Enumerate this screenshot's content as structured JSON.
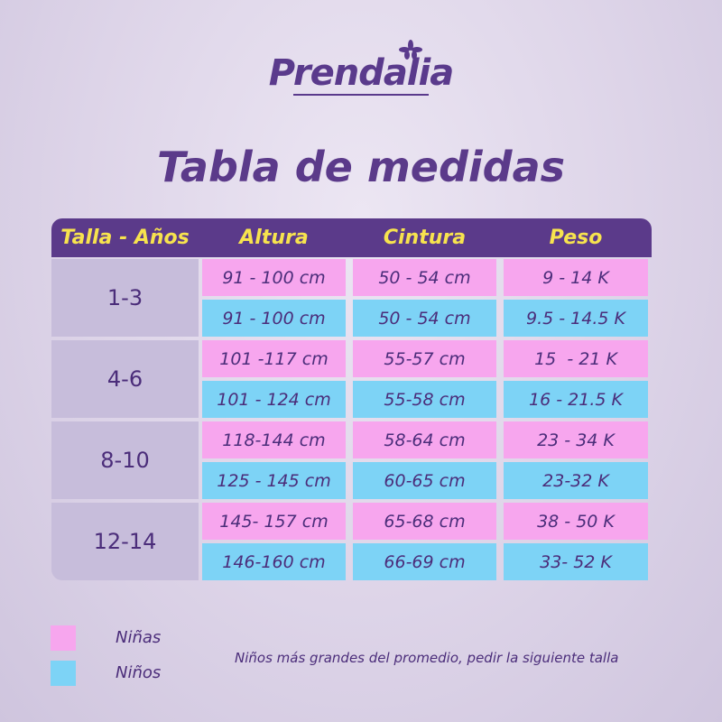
{
  "brand": "Prendalia",
  "title": "Tabla de medidas",
  "table": {
    "header": [
      "Talla - Años",
      "Altura",
      "Cintura",
      "Peso"
    ],
    "groups": [
      {
        "size": "1-3",
        "rows": [
          [
            "91 - 100 cm",
            "50 - 54 cm",
            "9 - 14 K"
          ],
          [
            "91 - 100 cm",
            "50 - 54 cm",
            "9.5 - 14.5 K"
          ]
        ]
      },
      {
        "size": "4-6",
        "rows": [
          [
            "101 -117 cm",
            "55-57 cm",
            "15  - 21 K"
          ],
          [
            "101 - 124 cm",
            "55-58 cm",
            "16 - 21.5 K"
          ]
        ]
      },
      {
        "size": "8-10",
        "rows": [
          [
            "118-144 cm",
            "58-64 cm",
            "23 - 34 K"
          ],
          [
            "125 - 145 cm",
            "60-65 cm",
            "23-32 K"
          ]
        ]
      },
      {
        "size": "12-14",
        "rows": [
          [
            "145- 157 cm",
            "65-68 cm",
            "38 - 50 K"
          ],
          [
            "146-160 cm",
            "66-69 cm",
            "33- 52 K"
          ]
        ]
      }
    ]
  },
  "legend": [
    "Niñas",
    "Niños"
  ],
  "note": "Niños más grandes del promedio, pedir la siguiente talla"
}
